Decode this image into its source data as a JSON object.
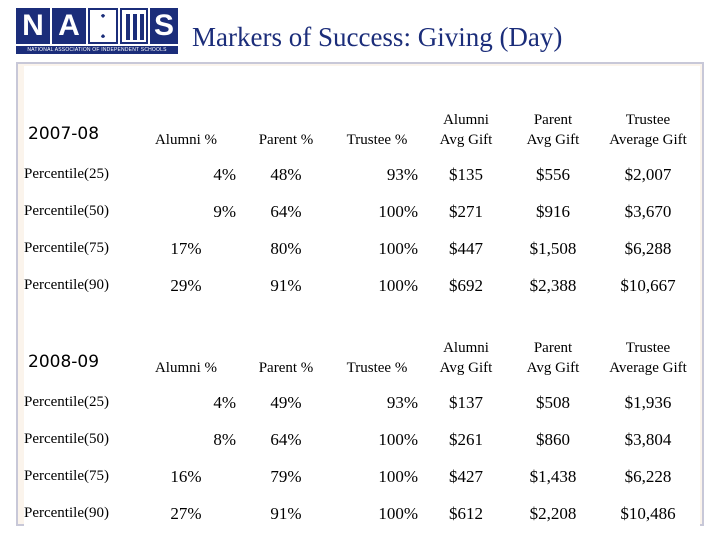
{
  "logo": {
    "letters": [
      "N",
      "A",
      "S"
    ],
    "subtitle": "NATIONAL ASSOCIATION OF INDEPENDENT SCHOOLS"
  },
  "title": "Markers of Success: Giving (Day)",
  "headers": {
    "alumni_pct": "Alumni %",
    "parent_pct": "Parent %",
    "trustee_pct": "Trustee %",
    "alumni_avg_1": "Alumni",
    "alumni_avg_2": "Avg Gift",
    "parent_avg_1": "Parent",
    "parent_avg_2": "Avg Gift",
    "trustee_avg_1": "Trustee",
    "trustee_avg_2": "Average Gift"
  },
  "tables": [
    {
      "year": "2007-08",
      "rows": [
        {
          "label": "Percentile(25)",
          "alumni": "4%",
          "parent": "48%",
          "trustee": "93%",
          "alumni_gift": "$135",
          "parent_gift": "$556",
          "trustee_gift": "$2,007"
        },
        {
          "label": "Percentile(50)",
          "alumni": "9%",
          "parent": "64%",
          "trustee": "100%",
          "alumni_gift": "$271",
          "parent_gift": "$916",
          "trustee_gift": "$3,670"
        },
        {
          "label": "Percentile(75)",
          "alumni": "17%",
          "parent": "80%",
          "trustee": "100%",
          "alumni_gift": "$447",
          "parent_gift": "$1,508",
          "trustee_gift": "$6,288"
        },
        {
          "label": "Percentile(90)",
          "alumni": "29%",
          "parent": "91%",
          "trustee": "100%",
          "alumni_gift": "$692",
          "parent_gift": "$2,388",
          "trustee_gift": "$10,667"
        }
      ]
    },
    {
      "year": "2008-09",
      "rows": [
        {
          "label": "Percentile(25)",
          "alumni": "4%",
          "parent": "49%",
          "trustee": "93%",
          "alumni_gift": "$137",
          "parent_gift": "$508",
          "trustee_gift": "$1,936"
        },
        {
          "label": "Percentile(50)",
          "alumni": "8%",
          "parent": "64%",
          "trustee": "100%",
          "alumni_gift": "$261",
          "parent_gift": "$860",
          "trustee_gift": "$3,804"
        },
        {
          "label": "Percentile(75)",
          "alumni": "16%",
          "parent": "79%",
          "trustee": "100%",
          "alumni_gift": "$427",
          "parent_gift": "$1,438",
          "trustee_gift": "$6,228"
        },
        {
          "label": "Percentile(90)",
          "alumni": "27%",
          "parent": "91%",
          "trustee": "100%",
          "alumni_gift": "$612",
          "parent_gift": "$2,208",
          "trustee_gift": "$10,486"
        }
      ]
    }
  ],
  "colors": {
    "brand": "#1b2d7a",
    "frame": "#c8c8d8"
  }
}
